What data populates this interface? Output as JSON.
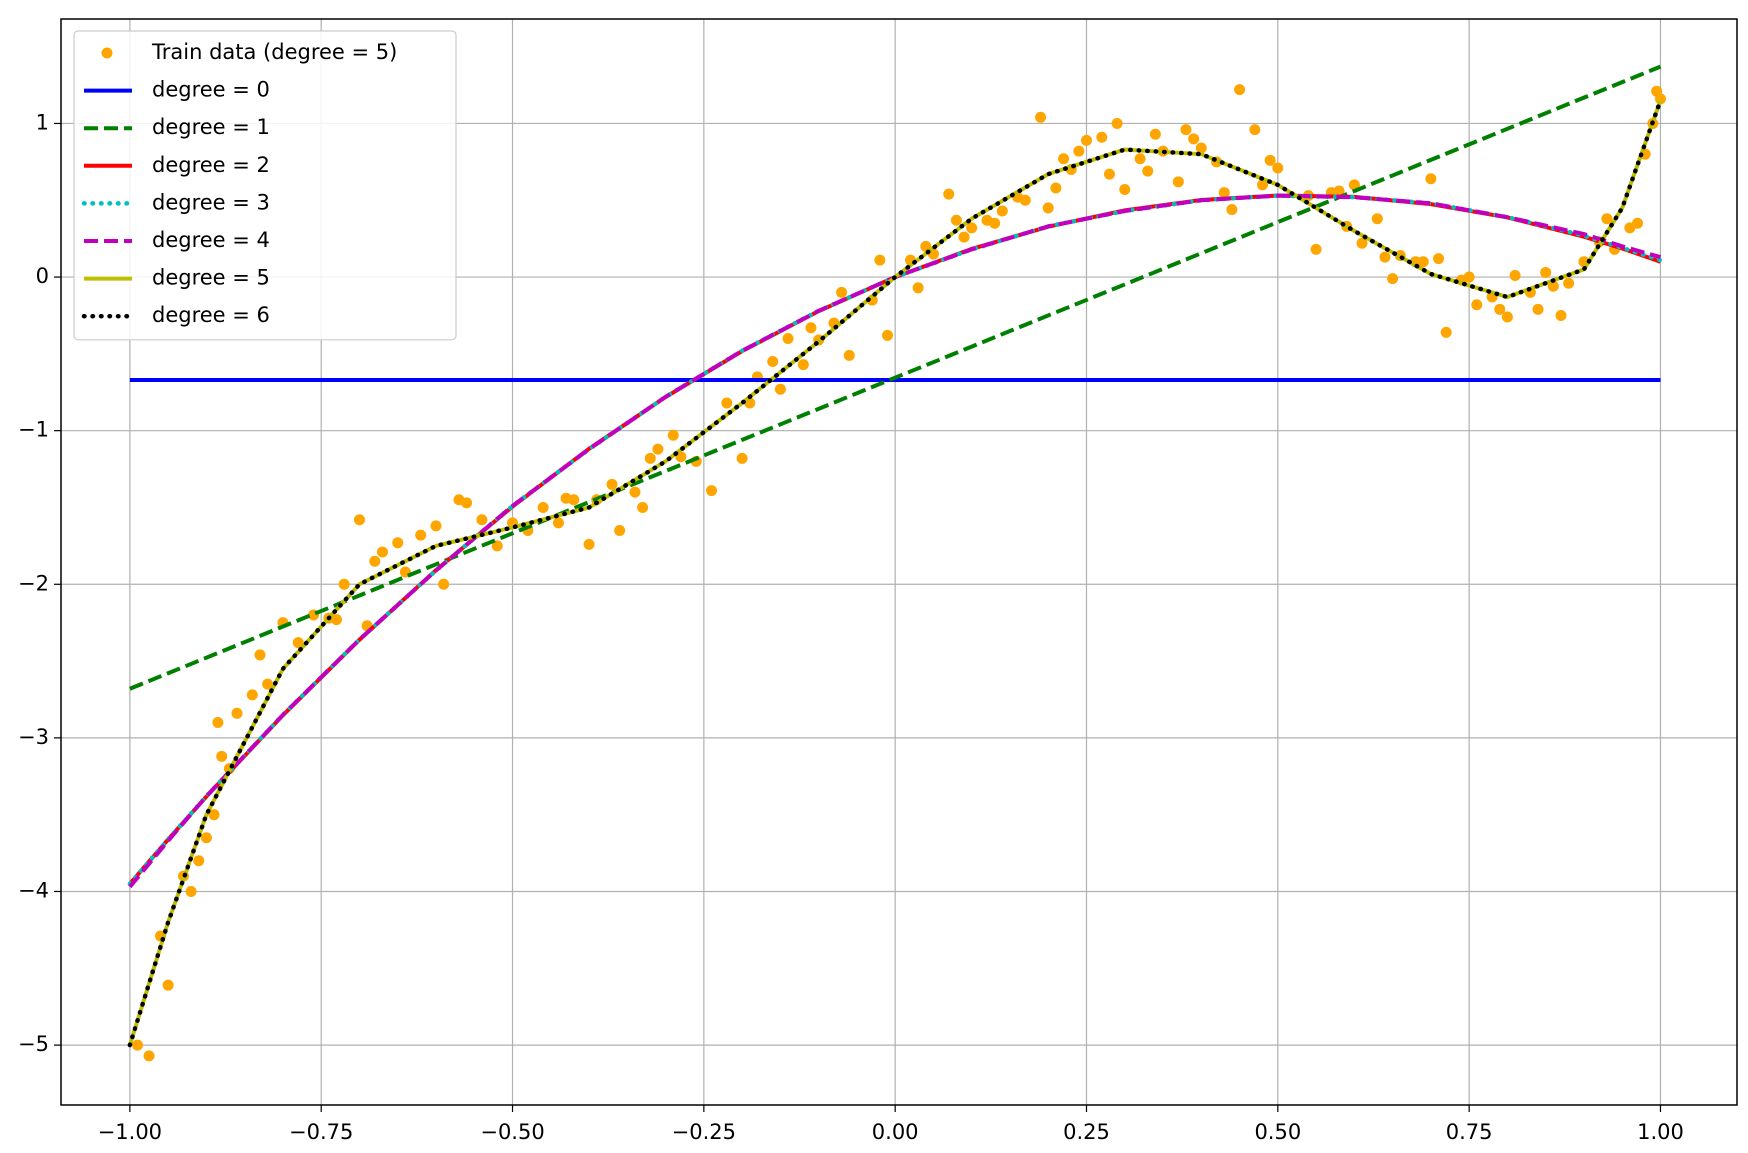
{
  "chart_data": {
    "type": "line",
    "grid": true,
    "legend": "upper left",
    "xlim": [
      -1.09,
      1.1
    ],
    "ylim": [
      -5.39,
      1.68
    ],
    "xticks": [
      {
        "value": -1,
        "label": "−1.00"
      },
      {
        "value": -0.75,
        "label": "−0.75"
      },
      {
        "value": -0.5,
        "label": "−0.50"
      },
      {
        "value": -0.25,
        "label": "−0.25"
      },
      {
        "value": 0,
        "label": "0.00"
      },
      {
        "value": 0.25,
        "label": "0.25"
      },
      {
        "value": 0.5,
        "label": "0.50"
      },
      {
        "value": 0.75,
        "label": "0.75"
      },
      {
        "value": 1,
        "label": "1.00"
      }
    ],
    "yticks": [
      {
        "value": -5,
        "label": "−5"
      },
      {
        "value": -4,
        "label": "−4"
      },
      {
        "value": -3,
        "label": "−3"
      },
      {
        "value": -2,
        "label": "−2"
      },
      {
        "value": -1,
        "label": "−1"
      },
      0,
      1
    ],
    "scatter": {
      "name": "Train data (degree = 5)",
      "color": "#ffa500",
      "x": [
        -0.99,
        -0.975,
        -0.96,
        -0.95,
        -0.93,
        -0.92,
        -0.91,
        -0.9,
        -0.89,
        -0.88,
        -0.885,
        -0.87,
        -0.86,
        -0.84,
        -0.83,
        -0.82,
        -0.8,
        -0.78,
        -0.76,
        -0.74,
        -0.73,
        -0.72,
        -0.7,
        -0.69,
        -0.68,
        -0.67,
        -0.65,
        -0.64,
        -0.62,
        -0.6,
        -0.59,
        -0.57,
        -0.56,
        -0.54,
        -0.52,
        -0.5,
        -0.48,
        -0.46,
        -0.44,
        -0.43,
        -0.42,
        -0.4,
        -0.39,
        -0.37,
        -0.36,
        -0.34,
        -0.33,
        -0.32,
        -0.31,
        -0.29,
        -0.28,
        -0.26,
        -0.24,
        -0.22,
        -0.2,
        -0.19,
        -0.18,
        -0.16,
        -0.15,
        -0.14,
        -0.12,
        -0.11,
        -0.1,
        -0.08,
        -0.07,
        -0.06,
        -0.03,
        -0.02,
        -0.01,
        0.02,
        0.03,
        0.04,
        0.05,
        0.07,
        0.08,
        0.09,
        0.1,
        0.12,
        0.13,
        0.14,
        0.16,
        0.17,
        0.19,
        0.2,
        0.21,
        0.22,
        0.23,
        0.24,
        0.25,
        0.27,
        0.28,
        0.29,
        0.3,
        0.32,
        0.33,
        0.34,
        0.35,
        0.37,
        0.38,
        0.39,
        0.4,
        0.42,
        0.43,
        0.44,
        0.45,
        0.47,
        0.48,
        0.49,
        0.5,
        0.54,
        0.55,
        0.57,
        0.58,
        0.59,
        0.6,
        0.61,
        0.63,
        0.64,
        0.65,
        0.66,
        0.68,
        0.69,
        0.7,
        0.71,
        0.72,
        0.74,
        0.75,
        0.76,
        0.78,
        0.79,
        0.8,
        0.81,
        0.83,
        0.84,
        0.85,
        0.86,
        0.87,
        0.88,
        0.9,
        0.92,
        0.93,
        0.94,
        0.96,
        0.97,
        0.98,
        0.99,
        0.995,
        1.0
      ],
      "values": [
        -5.0,
        -5.07,
        -4.29,
        -4.61,
        -3.9,
        -4.0,
        -3.8,
        -3.65,
        -3.5,
        -3.12,
        -2.9,
        -3.2,
        -2.84,
        -2.72,
        -2.46,
        -2.65,
        -2.25,
        -2.38,
        -2.2,
        -2.22,
        -2.23,
        -2.0,
        -1.58,
        -2.27,
        -1.85,
        -1.79,
        -1.73,
        -1.92,
        -1.68,
        -1.62,
        -2.0,
        -1.45,
        -1.47,
        -1.58,
        -1.75,
        -1.6,
        -1.65,
        -1.5,
        -1.6,
        -1.44,
        -1.45,
        -1.74,
        -1.45,
        -1.35,
        -1.65,
        -1.4,
        -1.5,
        -1.18,
        -1.12,
        -1.03,
        -1.17,
        -1.2,
        -1.39,
        -0.82,
        -1.18,
        -0.82,
        -0.65,
        -0.55,
        -0.73,
        -0.4,
        -0.57,
        -0.33,
        -0.41,
        -0.3,
        -0.1,
        -0.51,
        -0.15,
        0.11,
        -0.38,
        0.11,
        -0.07,
        0.2,
        0.15,
        0.54,
        0.37,
        0.26,
        0.32,
        0.37,
        0.35,
        0.43,
        0.52,
        0.5,
        1.04,
        0.45,
        0.58,
        0.77,
        0.7,
        0.82,
        0.89,
        0.91,
        0.67,
        1.0,
        0.57,
        0.77,
        0.69,
        0.93,
        0.82,
        0.62,
        0.96,
        0.9,
        0.84,
        0.75,
        0.55,
        0.44,
        1.22,
        0.96,
        0.6,
        0.76,
        0.71,
        0.53,
        0.18,
        0.55,
        0.56,
        0.33,
        0.6,
        0.22,
        0.38,
        0.13,
        -0.01,
        0.14,
        0.1,
        0.1,
        0.64,
        0.12,
        -0.36,
        -0.02,
        0.0,
        -0.18,
        -0.13,
        -0.21,
        -0.26,
        0.01,
        -0.1,
        -0.21,
        0.03,
        -0.06,
        -0.25,
        -0.04,
        0.1,
        0.23,
        0.38,
        0.18,
        0.32,
        0.35,
        0.8,
        1.0,
        1.21,
        1.16
      ]
    },
    "x": [
      -1,
      -0.95,
      -0.9,
      -0.8,
      -0.7,
      -0.6,
      -0.5,
      -0.4,
      -0.3,
      -0.2,
      -0.1,
      0,
      0.1,
      0.2,
      0.3,
      0.4,
      0.5,
      0.6,
      0.7,
      0.8,
      0.9,
      0.95,
      1
    ],
    "series": [
      {
        "name": "degree = 0",
        "color": "#0000ff",
        "dash": "solid",
        "values": [
          -0.67,
          -0.67,
          -0.67,
          -0.67,
          -0.67,
          -0.67,
          -0.67,
          -0.67,
          -0.67,
          -0.67,
          -0.67,
          -0.67,
          -0.67,
          -0.67,
          -0.67,
          -0.67,
          -0.67,
          -0.67,
          -0.67,
          -0.67,
          -0.67,
          -0.67,
          -0.67
        ]
      },
      {
        "name": "degree = 1",
        "color": "#008000",
        "dash": "dashed",
        "values": [
          -2.68,
          -2.579,
          -2.478,
          -2.275,
          -2.073,
          -1.87,
          -1.668,
          -1.465,
          -1.263,
          -1.06,
          -0.858,
          -0.655,
          -0.453,
          -0.25,
          -0.048,
          0.155,
          0.358,
          0.56,
          0.763,
          0.965,
          1.168,
          1.269,
          1.37
        ]
      },
      {
        "name": "degree = 2",
        "color": "#ff0000",
        "dash": "solid",
        "values": [
          -3.95,
          -3.661,
          -3.382,
          -2.852,
          -2.361,
          -1.908,
          -1.494,
          -1.118,
          -0.781,
          -0.482,
          -0.222,
          0,
          0.183,
          0.328,
          0.434,
          0.502,
          0.531,
          0.522,
          0.475,
          0.388,
          0.263,
          0.186,
          0.1
        ]
      },
      {
        "name": "degree = 3",
        "color": "#00bfbf",
        "dash": "dotted",
        "values": [
          -3.95,
          -3.66,
          -3.38,
          -2.85,
          -2.36,
          -1.91,
          -1.49,
          -1.12,
          -0.78,
          -0.48,
          -0.22,
          0,
          0.18,
          0.33,
          0.43,
          0.5,
          0.53,
          0.52,
          0.48,
          0.39,
          0.27,
          0.19,
          0.11
        ]
      },
      {
        "name": "degree = 4",
        "color": "#bf00bf",
        "dash": "dashed",
        "values": [
          -3.97,
          -3.67,
          -3.38,
          -2.85,
          -2.36,
          -1.91,
          -1.49,
          -1.12,
          -0.78,
          -0.48,
          -0.22,
          0,
          0.18,
          0.33,
          0.43,
          0.5,
          0.53,
          0.52,
          0.48,
          0.39,
          0.28,
          0.2,
          0.13
        ]
      },
      {
        "name": "degree = 5",
        "color": "#bfbf00",
        "dash": "solid",
        "values": [
          -5.0,
          -4.2,
          -3.5,
          -2.55,
          -2.0,
          -1.75,
          -1.63,
          -1.5,
          -1.2,
          -0.82,
          -0.42,
          0,
          0.38,
          0.67,
          0.83,
          0.8,
          0.6,
          0.3,
          0.02,
          -0.13,
          0.05,
          0.45,
          1.15
        ]
      },
      {
        "name": "degree = 6",
        "color": "#000000",
        "dash": "dotted",
        "values": [
          -5.0,
          -4.2,
          -3.5,
          -2.55,
          -2.0,
          -1.75,
          -1.63,
          -1.5,
          -1.2,
          -0.82,
          -0.42,
          0,
          0.38,
          0.67,
          0.83,
          0.8,
          0.6,
          0.3,
          0.02,
          -0.13,
          0.05,
          0.45,
          1.15
        ]
      }
    ]
  }
}
